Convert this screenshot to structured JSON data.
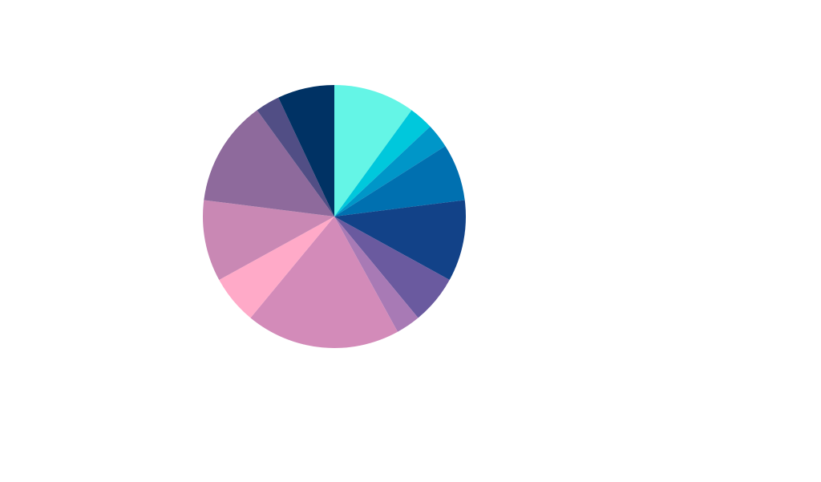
{
  "chart_data": {
    "type": "pie",
    "values": [
      10,
      3,
      3,
      7,
      10,
      6,
      3,
      19,
      6,
      10,
      13,
      3,
      7
    ],
    "colors": [
      "#64f5e6",
      "#00c8dc",
      "#0096c8",
      "#0070b0",
      "#124288",
      "#6a5a9f",
      "#a87ab5",
      "#d38bb9",
      "#ffaac8",
      "#c988b4",
      "#8e6a9c",
      "#514e85",
      "#003264"
    ]
  }
}
